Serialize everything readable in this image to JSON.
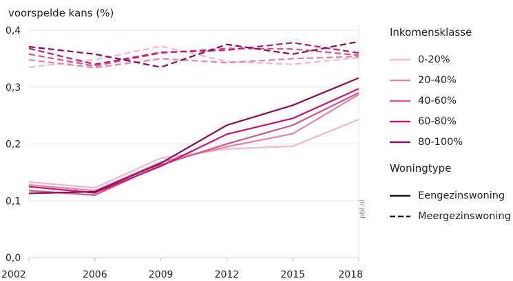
{
  "chart_data": {
    "type": "line",
    "ylabel": "voorspelde kans (%)",
    "x": [
      "2002",
      "2006",
      "2009",
      "2012",
      "2015",
      "2018"
    ],
    "ylim": [
      0.0,
      0.4
    ],
    "y_ticks": [
      "0,0",
      "0,1",
      "0,2",
      "0,3",
      "0,4"
    ],
    "grid": true,
    "series": [
      {
        "name": "0-20%",
        "housing": "Eengezinswoning",
        "color": "#f2b8cb",
        "dash": false,
        "values": [
          0.133,
          0.123,
          0.175,
          0.191,
          0.196,
          0.243
        ]
      },
      {
        "name": "20-40%",
        "housing": "Eengezinswoning",
        "color": "#e486a6",
        "dash": false,
        "values": [
          0.128,
          0.118,
          0.168,
          0.195,
          0.218,
          0.287
        ]
      },
      {
        "name": "40-60%",
        "housing": "Eengezinswoning",
        "color": "#d15a8b",
        "dash": false,
        "values": [
          0.118,
          0.11,
          0.163,
          0.2,
          0.233,
          0.29
        ]
      },
      {
        "name": "60-80%",
        "housing": "Eengezinswoning",
        "color": "#c4187a",
        "dash": false,
        "values": [
          0.125,
          0.114,
          0.161,
          0.217,
          0.245,
          0.297
        ]
      },
      {
        "name": "80-100%",
        "housing": "Eengezinswoning",
        "color": "#8a0f5a",
        "dash": false,
        "values": [
          0.113,
          0.116,
          0.166,
          0.233,
          0.268,
          0.316
        ]
      },
      {
        "name": "0-20%",
        "housing": "Meergezinswoning",
        "color": "#f2b8cb",
        "dash": true,
        "values": [
          0.335,
          0.348,
          0.372,
          0.345,
          0.34,
          0.352
        ]
      },
      {
        "name": "20-40%",
        "housing": "Meergezinswoning",
        "color": "#e486a6",
        "dash": true,
        "values": [
          0.348,
          0.334,
          0.35,
          0.343,
          0.35,
          0.354
        ]
      },
      {
        "name": "40-60%",
        "housing": "Meergezinswoning",
        "color": "#d15a8b",
        "dash": true,
        "values": [
          0.358,
          0.337,
          0.36,
          0.368,
          0.367,
          0.356
        ]
      },
      {
        "name": "60-80%",
        "housing": "Meergezinswoning",
        "color": "#c4187a",
        "dash": true,
        "values": [
          0.368,
          0.34,
          0.361,
          0.365,
          0.378,
          0.36
        ]
      },
      {
        "name": "80-100%",
        "housing": "Meergezinswoning",
        "color": "#8a0f5a",
        "dash": true,
        "values": [
          0.371,
          0.358,
          0.335,
          0.375,
          0.358,
          0.38
        ]
      }
    ]
  },
  "legend": {
    "income_title": "Inkomensklasse",
    "income": [
      {
        "label": "0-20%",
        "color": "#f2b8cb"
      },
      {
        "label": "20-40%",
        "color": "#e486a6"
      },
      {
        "label": "40-60%",
        "color": "#d15a8b"
      },
      {
        "label": "60-80%",
        "color": "#c4187a"
      },
      {
        "label": "80-100%",
        "color": "#8a0f5a"
      }
    ],
    "housing_title": "Woningtype",
    "housing": [
      {
        "label": "Eengezinswoning",
        "dash": false
      },
      {
        "label": "Meergezinswoning",
        "dash": true
      }
    ]
  },
  "source": "pbl.nl"
}
